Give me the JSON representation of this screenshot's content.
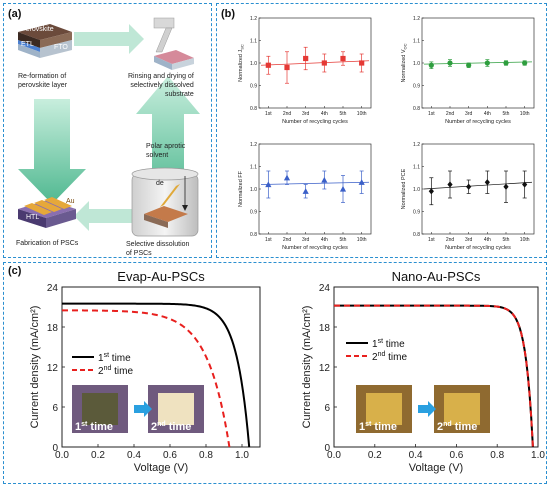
{
  "panel_a": {
    "label": "(a)",
    "layer_labels": [
      "Perovskite",
      "ETL",
      "FTO"
    ],
    "steps": {
      "reformation": "Re-formation of\nperovskite layer",
      "rinsing": "Rinsing and drying of\nselectively dissolved\nsubstrate",
      "solvent": "Polar aprotic\nsolvent",
      "dissolution": "Selective dissolution\nof PSCs",
      "fabrication": "Fabrication of PSCs"
    },
    "device_labels": [
      "HTL",
      "Au"
    ],
    "de_label": "de"
  },
  "panel_b": {
    "label": "(b)",
    "xlabel": "Number of recycling cycles",
    "categories": [
      "1st",
      "2nd",
      "3rd",
      "4th",
      "5th",
      "10th"
    ],
    "yticks": [
      "1.2",
      "1.1",
      "1.0",
      "0.9",
      "0.8"
    ]
  },
  "panel_c": {
    "label": "(c)",
    "xlabel": "Voltage (V)",
    "ylabel": "Current density (mA/cm²)",
    "xticks": [
      "0.0",
      "0.2",
      "0.4",
      "0.6",
      "0.8",
      "1.0"
    ],
    "yticks": [
      "0",
      "6",
      "12",
      "18",
      "24"
    ],
    "legend": [
      {
        "sup": "st",
        "num": "1",
        "suffix": " time"
      },
      {
        "sup": "nd",
        "num": "2",
        "suffix": " time"
      }
    ],
    "photo_labels": [
      {
        "num": "1",
        "sup": "st",
        "suffix": " time"
      },
      {
        "num": "2",
        "sup": "nd",
        "suffix": " time"
      }
    ]
  },
  "chart_data": [
    {
      "type": "scatter",
      "ylabel": "Normalized J_SC",
      "color": "#e53935",
      "marker": "square",
      "categories": [
        "1st",
        "2nd",
        "3rd",
        "4th",
        "5th",
        "10th"
      ],
      "values": [
        0.99,
        0.98,
        1.02,
        1.0,
        1.02,
        1.0
      ],
      "errors": [
        0.04,
        0.07,
        0.05,
        0.04,
        0.03,
        0.04
      ],
      "fit": [
        0.99,
        1.01
      ],
      "ylim": [
        0.8,
        1.2
      ]
    },
    {
      "type": "scatter",
      "ylabel": "Normalized V_OC",
      "color": "#2e9e3e",
      "marker": "circle",
      "categories": [
        "1st",
        "2nd",
        "3rd",
        "4th",
        "5th",
        "10th"
      ],
      "values": [
        0.99,
        1.0,
        0.99,
        1.0,
        1.0,
        1.0
      ],
      "errors": [
        0.015,
        0.015,
        0.01,
        0.015,
        0.01,
        0.01
      ],
      "fit": [
        0.995,
        1.005
      ],
      "ylim": [
        0.8,
        1.2
      ]
    },
    {
      "type": "scatter",
      "ylabel": "Normalized FF",
      "color": "#3a5fc8",
      "marker": "triangle",
      "categories": [
        "1st",
        "2nd",
        "3rd",
        "4th",
        "5th",
        "10th"
      ],
      "values": [
        1.02,
        1.05,
        0.99,
        1.04,
        1.0,
        1.03
      ],
      "errors": [
        0.06,
        0.03,
        0.03,
        0.04,
        0.06,
        0.05
      ],
      "fit": [
        1.02,
        1.03
      ],
      "ylim": [
        0.8,
        1.2
      ]
    },
    {
      "type": "scatter",
      "ylabel": "Normalized PCE",
      "color": "#111111",
      "marker": "diamond",
      "categories": [
        "1st",
        "2nd",
        "3rd",
        "4th",
        "5th",
        "10th"
      ],
      "values": [
        0.99,
        1.02,
        1.01,
        1.03,
        1.01,
        1.02
      ],
      "errors": [
        0.06,
        0.06,
        0.03,
        0.05,
        0.07,
        0.06
      ],
      "fit": [
        1.0,
        1.03
      ],
      "ylim": [
        0.8,
        1.2
      ]
    },
    {
      "type": "line",
      "title": "Evap-Au-PSCs",
      "xlim": [
        0,
        1.1
      ],
      "ylim": [
        0,
        24
      ],
      "series": [
        {
          "color": "#000000",
          "dash": false,
          "jsc": 21.5,
          "voc": 1.04,
          "vknee": 0.75,
          "kscale": 0.07
        },
        {
          "color": "#e8201e",
          "dash": true,
          "jsc": 20.5,
          "voc": 0.93,
          "vknee": 0.55,
          "kscale": 0.12
        }
      ]
    },
    {
      "type": "line",
      "title": "Nano-Au-PSCs",
      "xlim": [
        0,
        1.0
      ],
      "ylim": [
        0,
        24
      ],
      "series": [
        {
          "color": "#000000",
          "dash": false,
          "jsc": 21.2,
          "voc": 0.975,
          "vknee": 0.85,
          "kscale": 0.035
        },
        {
          "color": "#e8201e",
          "dash": true,
          "jsc": 21.2,
          "voc": 0.975,
          "vknee": 0.85,
          "kscale": 0.035
        }
      ]
    }
  ]
}
